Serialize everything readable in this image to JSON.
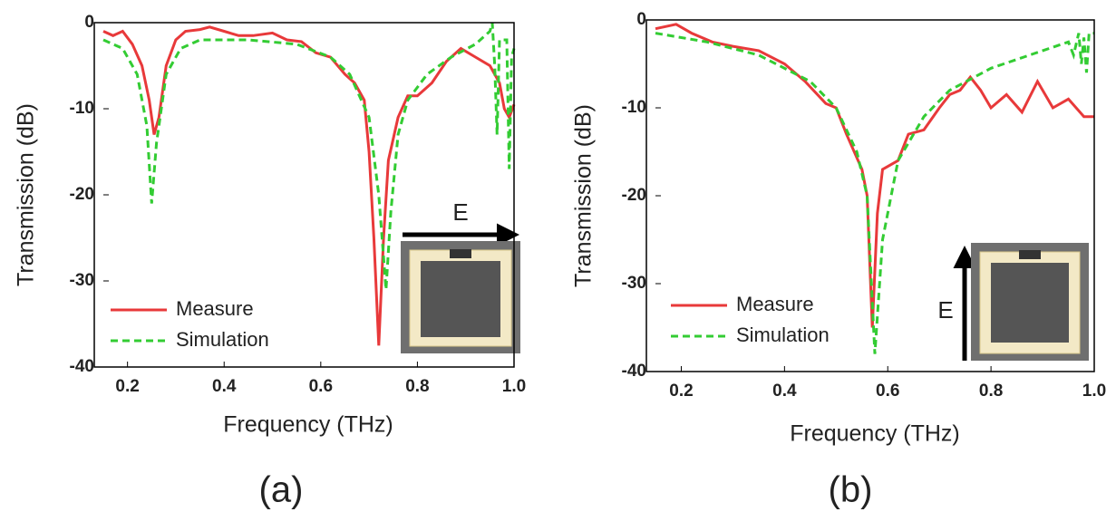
{
  "chart_data": [
    {
      "type": "line",
      "x_label": "Frequency (THz)",
      "y_label": "Transmission (dB)",
      "caption": "(a)",
      "annotation": "E",
      "xlim": [
        0.15,
        1
      ],
      "ylim": [
        -40,
        0
      ],
      "xticks": [
        0.2,
        0.4,
        0.6,
        0.8,
        {
          "value": 1,
          "label": "1.0"
        }
      ],
      "yticks": [
        0,
        -10,
        -20,
        -30,
        -40
      ],
      "legend": "lower left",
      "series": [
        {
          "name": "Measure",
          "color": "#e8393a",
          "line_style": "solid",
          "x": [
            0.15,
            0.17,
            0.19,
            0.21,
            0.23,
            0.245,
            0.255,
            0.265,
            0.28,
            0.3,
            0.32,
            0.35,
            0.37,
            0.4,
            0.43,
            0.46,
            0.5,
            0.53,
            0.56,
            0.59,
            0.62,
            0.65,
            0.67,
            0.69,
            0.7,
            0.71,
            0.72,
            0.73,
            0.74,
            0.76,
            0.78,
            0.8,
            0.83,
            0.86,
            0.89,
            0.92,
            0.95,
            0.97,
            0.98,
            0.99,
            1.0
          ],
          "values": [
            -1,
            -1.5,
            -1,
            -2.5,
            -5,
            -9,
            -13,
            -11,
            -5,
            -2,
            -1,
            -0.8,
            -0.5,
            -1,
            -1.5,
            -1.5,
            -1.2,
            -2,
            -2.2,
            -3.5,
            -4,
            -6,
            -7,
            -9,
            -15,
            -25,
            -37.5,
            -25,
            -16,
            -11,
            -8.5,
            -8.5,
            -7,
            -4.5,
            -3,
            -4,
            -5,
            -7,
            -10,
            -11,
            -9.5
          ]
        },
        {
          "name": "Simulation",
          "color": "#33cc33",
          "line_style": "dashed",
          "x": [
            0.15,
            0.19,
            0.22,
            0.24,
            0.25,
            0.26,
            0.28,
            0.31,
            0.35,
            0.45,
            0.55,
            0.62,
            0.66,
            0.7,
            0.72,
            0.735,
            0.745,
            0.76,
            0.78,
            0.82,
            0.87,
            0.92,
            0.95,
            0.955,
            0.96,
            0.965,
            0.97,
            0.985,
            0.99,
            0.995,
            1.0
          ],
          "values": [
            -2,
            -3,
            -6,
            -12,
            -21,
            -14,
            -6,
            -3,
            -2,
            -2,
            -2.5,
            -4,
            -6,
            -11,
            -20,
            -31,
            -22,
            -13,
            -9,
            -6,
            -4,
            -2.5,
            -1,
            0,
            -5,
            -13,
            -2,
            -2,
            -17,
            -4,
            -3
          ]
        }
      ]
    },
    {
      "type": "line",
      "x_label": "Frequency (THz)",
      "y_label": "Transmission (dB)",
      "caption": "(b)",
      "annotation": "E",
      "xlim": [
        0.15,
        1
      ],
      "ylim": [
        -40,
        0
      ],
      "xticks": [
        0.2,
        0.4,
        0.6,
        0.8,
        {
          "value": 1,
          "label": "1.0"
        }
      ],
      "yticks": [
        0,
        -10,
        -20,
        -30,
        -40
      ],
      "legend": "lower left",
      "series": [
        {
          "name": "Measure",
          "color": "#e8393a",
          "line_style": "solid",
          "x": [
            0.15,
            0.19,
            0.22,
            0.26,
            0.3,
            0.35,
            0.4,
            0.44,
            0.48,
            0.5,
            0.52,
            0.55,
            0.56,
            0.57,
            0.58,
            0.59,
            0.62,
            0.64,
            0.67,
            0.7,
            0.72,
            0.74,
            0.76,
            0.78,
            0.8,
            0.83,
            0.86,
            0.89,
            0.92,
            0.95,
            0.98,
            1.0
          ],
          "values": [
            -1,
            -0.5,
            -1.5,
            -2.5,
            -3,
            -3.5,
            -5,
            -7,
            -9.5,
            -10,
            -13,
            -17,
            -20,
            -35,
            -22,
            -17,
            -16,
            -13,
            -12.5,
            -10,
            -8.5,
            -8,
            -6.5,
            -8,
            -10,
            -8.5,
            -10.5,
            -7,
            -10,
            -9,
            -11,
            -11
          ]
        },
        {
          "name": "Simulation",
          "color": "#33cc33",
          "line_style": "dashed",
          "x": [
            0.15,
            0.25,
            0.35,
            0.45,
            0.5,
            0.54,
            0.56,
            0.575,
            0.59,
            0.62,
            0.67,
            0.72,
            0.8,
            0.9,
            0.95,
            0.96,
            0.97,
            0.975,
            0.98,
            0.985,
            0.99,
            1.0
          ],
          "values": [
            -1.5,
            -2.5,
            -4,
            -7,
            -10,
            -15,
            -20,
            -38,
            -25,
            -16,
            -11,
            -8,
            -5.5,
            -3.5,
            -2.5,
            -4,
            -1.5,
            -5,
            -2,
            -6,
            -1.5,
            -1.5
          ]
        }
      ]
    }
  ]
}
